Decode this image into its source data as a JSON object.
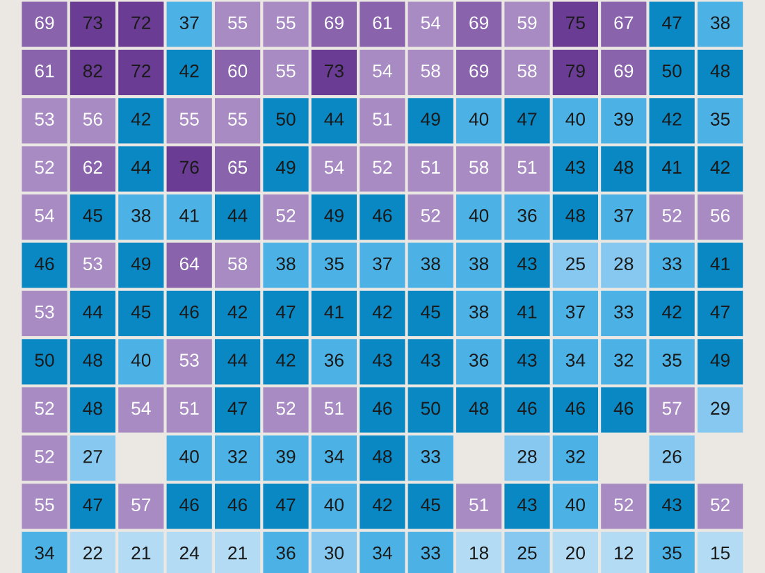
{
  "chart_data": {
    "type": "heatmap",
    "categories": [
      null,
      null,
      null,
      null,
      null,
      null,
      null,
      null,
      null,
      null,
      null,
      null,
      null,
      null,
      null
    ],
    "y_categories": [
      null,
      null,
      null,
      null,
      null,
      null,
      null,
      null,
      null,
      null,
      null,
      null
    ],
    "cells": [
      [
        69,
        73,
        72,
        37,
        55,
        55,
        69,
        61,
        54,
        69,
        59,
        75,
        67,
        47,
        38
      ],
      [
        61,
        82,
        72,
        42,
        60,
        55,
        73,
        54,
        58,
        69,
        58,
        79,
        69,
        50,
        48
      ],
      [
        53,
        56,
        42,
        55,
        55,
        50,
        44,
        51,
        49,
        40,
        47,
        40,
        39,
        42,
        35
      ],
      [
        52,
        62,
        44,
        76,
        65,
        49,
        54,
        52,
        51,
        58,
        51,
        43,
        48,
        41,
        42
      ],
      [
        54,
        45,
        38,
        41,
        44,
        52,
        49,
        46,
        52,
        40,
        36,
        48,
        37,
        52,
        56
      ],
      [
        46,
        53,
        49,
        64,
        58,
        38,
        35,
        37,
        38,
        38,
        43,
        25,
        28,
        33,
        41
      ],
      [
        53,
        44,
        45,
        46,
        42,
        47,
        41,
        42,
        45,
        38,
        41,
        37,
        33,
        42,
        47
      ],
      [
        50,
        48,
        40,
        53,
        44,
        42,
        36,
        43,
        43,
        36,
        43,
        34,
        32,
        35,
        49
      ],
      [
        52,
        48,
        54,
        51,
        47,
        52,
        51,
        46,
        50,
        48,
        46,
        46,
        46,
        57,
        29
      ],
      [
        52,
        27,
        null,
        40,
        32,
        39,
        34,
        48,
        33,
        null,
        28,
        32,
        null,
        26,
        null
      ],
      [
        55,
        47,
        57,
        46,
        46,
        47,
        40,
        42,
        45,
        51,
        43,
        40,
        52,
        43,
        52
      ],
      [
        34,
        22,
        21,
        24,
        21,
        36,
        30,
        34,
        33,
        18,
        25,
        20,
        12,
        35,
        15
      ]
    ],
    "colors": [
      [
        "#8963ab",
        "#6a3c94",
        "#6a3c94",
        "#4cb2e6",
        "#a88bc3",
        "#a88bc3",
        "#8963ab",
        "#8963ab",
        "#a88bc3",
        "#8963ab",
        "#a88bc3",
        "#6a3c94",
        "#8963ab",
        "#0a88c4",
        "#4cb2e6"
      ],
      [
        "#8963ab",
        "#6a3c94",
        "#6a3c94",
        "#0a88c4",
        "#8963ab",
        "#a88bc3",
        "#6a3c94",
        "#a88bc3",
        "#a88bc3",
        "#8963ab",
        "#a88bc3",
        "#6a3c94",
        "#8963ab",
        "#0a88c4",
        "#0a88c4"
      ],
      [
        "#a88bc3",
        "#a88bc3",
        "#0a88c4",
        "#a88bc3",
        "#a88bc3",
        "#0a88c4",
        "#0a88c4",
        "#a88bc3",
        "#0a88c4",
        "#4cb2e6",
        "#0a88c4",
        "#4cb2e6",
        "#4cb2e6",
        "#0a88c4",
        "#4cb2e6"
      ],
      [
        "#a88bc3",
        "#8963ab",
        "#0a88c4",
        "#6a3c94",
        "#8963ab",
        "#0a88c4",
        "#a88bc3",
        "#a88bc3",
        "#a88bc3",
        "#a88bc3",
        "#a88bc3",
        "#0a88c4",
        "#0a88c4",
        "#0a88c4",
        "#0a88c4"
      ],
      [
        "#a88bc3",
        "#0a88c4",
        "#4cb2e6",
        "#4cb2e6",
        "#0a88c4",
        "#a88bc3",
        "#0a88c4",
        "#0a88c4",
        "#a88bc3",
        "#4cb2e6",
        "#4cb2e6",
        "#0a88c4",
        "#4cb2e6",
        "#a88bc3",
        "#a88bc3"
      ],
      [
        "#0a88c4",
        "#a88bc3",
        "#0a88c4",
        "#8963ab",
        "#a88bc3",
        "#4cb2e6",
        "#4cb2e6",
        "#4cb2e6",
        "#4cb2e6",
        "#4cb2e6",
        "#0a88c4",
        "#86c8ef",
        "#86c8ef",
        "#4cb2e6",
        "#0a88c4"
      ],
      [
        "#a88bc3",
        "#0a88c4",
        "#0a88c4",
        "#0a88c4",
        "#0a88c4",
        "#0a88c4",
        "#0a88c4",
        "#0a88c4",
        "#0a88c4",
        "#4cb2e6",
        "#0a88c4",
        "#4cb2e6",
        "#4cb2e6",
        "#0a88c4",
        "#0a88c4"
      ],
      [
        "#0a88c4",
        "#0a88c4",
        "#4cb2e6",
        "#a88bc3",
        "#0a88c4",
        "#0a88c4",
        "#4cb2e6",
        "#0a88c4",
        "#0a88c4",
        "#4cb2e6",
        "#0a88c4",
        "#4cb2e6",
        "#4cb2e6",
        "#4cb2e6",
        "#0a88c4"
      ],
      [
        "#a88bc3",
        "#0a88c4",
        "#a88bc3",
        "#a88bc3",
        "#0a88c4",
        "#a88bc3",
        "#a88bc3",
        "#0a88c4",
        "#0a88c4",
        "#0a88c4",
        "#0a88c4",
        "#0a88c4",
        "#0a88c4",
        "#a88bc3",
        "#86c8ef"
      ],
      [
        "#a88bc3",
        "#86c8ef",
        null,
        "#4cb2e6",
        "#4cb2e6",
        "#4cb2e6",
        "#4cb2e6",
        "#0a88c4",
        "#4cb2e6",
        null,
        "#86c8ef",
        "#4cb2e6",
        null,
        "#86c8ef",
        null
      ],
      [
        "#a88bc3",
        "#0a88c4",
        "#a88bc3",
        "#0a88c4",
        "#0a88c4",
        "#0a88c4",
        "#4cb2e6",
        "#0a88c4",
        "#0a88c4",
        "#a88bc3",
        "#0a88c4",
        "#4cb2e6",
        "#a88bc3",
        "#0a88c4",
        "#a88bc3"
      ],
      [
        "#4cb2e6",
        "#b3dcf4",
        "#b3dcf4",
        "#b3dcf4",
        "#b3dcf4",
        "#4cb2e6",
        "#86c8ef",
        "#4cb2e6",
        "#4cb2e6",
        "#b3dcf4",
        "#86c8ef",
        "#b3dcf4",
        "#b3dcf4",
        "#4cb2e6",
        "#b3dcf4"
      ]
    ],
    "data_labels": true
  }
}
